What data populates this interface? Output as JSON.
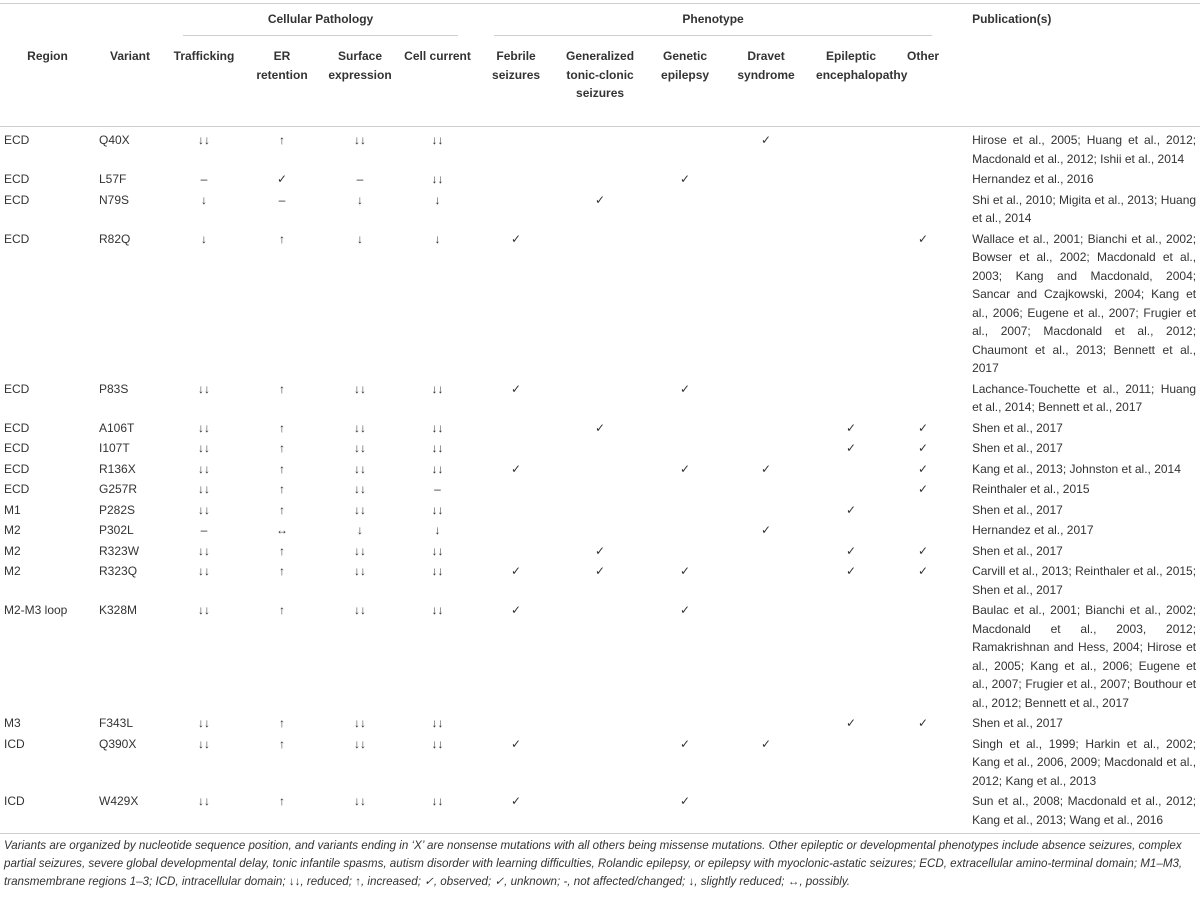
{
  "table": {
    "header_groups": [
      "Cellular Pathology",
      "Phenotype",
      "Publication(s)"
    ],
    "columns": [
      "Region",
      "Variant",
      "Trafficking",
      "ER retention",
      "Surface expression",
      "Cell current",
      "Febrile seizures",
      "Generalized tonic-clonic seizures",
      "Genetic epilepsy",
      "Dravet syndrome",
      "Epileptic encephalopathy",
      "Other"
    ],
    "rows": [
      [
        "ECD",
        "Q40X",
        "↓↓",
        "↑",
        "↓↓",
        "↓↓",
        null,
        null,
        null,
        "✓",
        null,
        null,
        "Hirose et al., 2005; Huang et al., 2012; Macdonald et al., 2012; Ishii et al., 2014"
      ],
      [
        "ECD",
        "L57F",
        "–",
        "✓",
        "–",
        "↓↓",
        null,
        null,
        "✓",
        null,
        null,
        null,
        "Hernandez et al., 2016"
      ],
      [
        "ECD",
        "N79S",
        "↓",
        "–",
        "↓",
        "↓",
        null,
        "✓",
        null,
        null,
        null,
        null,
        "Shi et al., 2010; Migita et al., 2013; Huang et al., 2014"
      ],
      [
        "ECD",
        "R82Q",
        "↓",
        "↑",
        "↓",
        "↓",
        "✓",
        null,
        null,
        null,
        null,
        "✓",
        "Wallace et al., 2001; Bianchi et al., 2002; Bowser et al., 2002; Macdonald et al., 2003; Kang and Macdonald, 2004; Sancar and Czajkowski, 2004; Kang et al., 2006; Eugene et al., 2007; Frugier et al., 2007; Macdonald et al., 2012; Chaumont et al., 2013; Bennett et al., 2017"
      ],
      [
        "ECD",
        "P83S",
        "↓↓",
        "↑",
        "↓↓",
        "↓↓",
        "✓",
        null,
        "✓",
        null,
        null,
        null,
        "Lachance-Touchette et al., 2011; Huang et al., 2014; Bennett et al., 2017"
      ],
      [
        "ECD",
        "A106T",
        "↓↓",
        "↑",
        "↓↓",
        "↓↓",
        null,
        "✓",
        null,
        null,
        "✓",
        "✓",
        "Shen et al., 2017"
      ],
      [
        "ECD",
        "I107T",
        "↓↓",
        "↑",
        "↓↓",
        "↓↓",
        null,
        null,
        null,
        null,
        "✓",
        "✓",
        "Shen et al., 2017"
      ],
      [
        "ECD",
        "R136X",
        "↓↓",
        "↑",
        "↓↓",
        "↓↓",
        "✓",
        null,
        "✓",
        "✓",
        null,
        "✓",
        "Kang et al., 2013; Johnston et al., 2014"
      ],
      [
        "ECD",
        "G257R",
        "↓↓",
        "↑",
        "↓↓",
        "–",
        null,
        null,
        null,
        null,
        null,
        "✓",
        "Reinthaler et al., 2015"
      ],
      [
        "M1",
        "P282S",
        "↓↓",
        "↑",
        "↓↓",
        "↓↓",
        null,
        null,
        null,
        null,
        "✓",
        null,
        "Shen et al., 2017"
      ],
      [
        "M2",
        "P302L",
        "–",
        "↔",
        "↓",
        "↓",
        null,
        null,
        null,
        "✓",
        null,
        null,
        "Hernandez et al., 2017"
      ],
      [
        "M2",
        "R323W",
        "↓↓",
        "↑",
        "↓↓",
        "↓↓",
        null,
        "✓",
        null,
        null,
        "✓",
        "✓",
        "Shen et al., 2017"
      ],
      [
        "M2",
        "R323Q",
        "↓↓",
        "↑",
        "↓↓",
        "↓↓",
        "✓",
        "✓",
        "✓",
        null,
        "✓",
        "✓",
        "Carvill et al., 2013; Reinthaler et al., 2015; Shen et al., 2017"
      ],
      [
        "M2-M3 loop",
        "K328M",
        "↓↓",
        "↑",
        "↓↓",
        "↓↓",
        "✓",
        null,
        "✓",
        null,
        null,
        null,
        "Baulac et al., 2001; Bianchi et al., 2002; Macdonald et al., 2003, 2012; Ramakrishnan and Hess, 2004; Hirose et al., 2005; Kang et al., 2006; Eugene et al., 2007; Frugier et al., 2007; Bouthour et al., 2012; Bennett et al., 2017"
      ],
      [
        "M3",
        "F343L",
        "↓↓",
        "↑",
        "↓↓",
        "↓↓",
        null,
        null,
        null,
        null,
        "✓",
        "✓",
        "Shen et al., 2017"
      ],
      [
        "ICD",
        "Q390X",
        "↓↓",
        "↑",
        "↓↓",
        "↓↓",
        "✓",
        null,
        "✓",
        "✓",
        null,
        null,
        "Singh et al., 1999; Harkin et al., 2002; Kang et al., 2006, 2009; Macdonald et al., 2012; Kang et al., 2013"
      ],
      [
        "ICD",
        "W429X",
        "↓↓",
        "↑",
        "↓↓",
        "↓↓",
        "✓",
        null,
        "✓",
        null,
        null,
        null,
        "Sun et al., 2008; Macdonald et al., 2012; Kang et al., 2013; Wang et al., 2016"
      ]
    ],
    "footnote": "Variants are organized by nucleotide sequence position, and variants ending in ‘X’ are nonsense mutations with all others being missense mutations. Other epileptic or developmental phenotypes include absence seizures, complex partial seizures, severe global developmental delay, tonic infantile spasms, autism disorder with learning difficulties, Rolandic epilepsy, or epilepsy with myoclonic-astatic seizures; ECD, extracellular amino-terminal domain; M1–M3, transmembrane regions 1–3; ICD, intracellular domain; ↓↓, reduced; ↑, increased; ✓, observed; ✓, unknown; -, not affected/changed; ↓, slightly reduced; ↔, possibly."
  }
}
